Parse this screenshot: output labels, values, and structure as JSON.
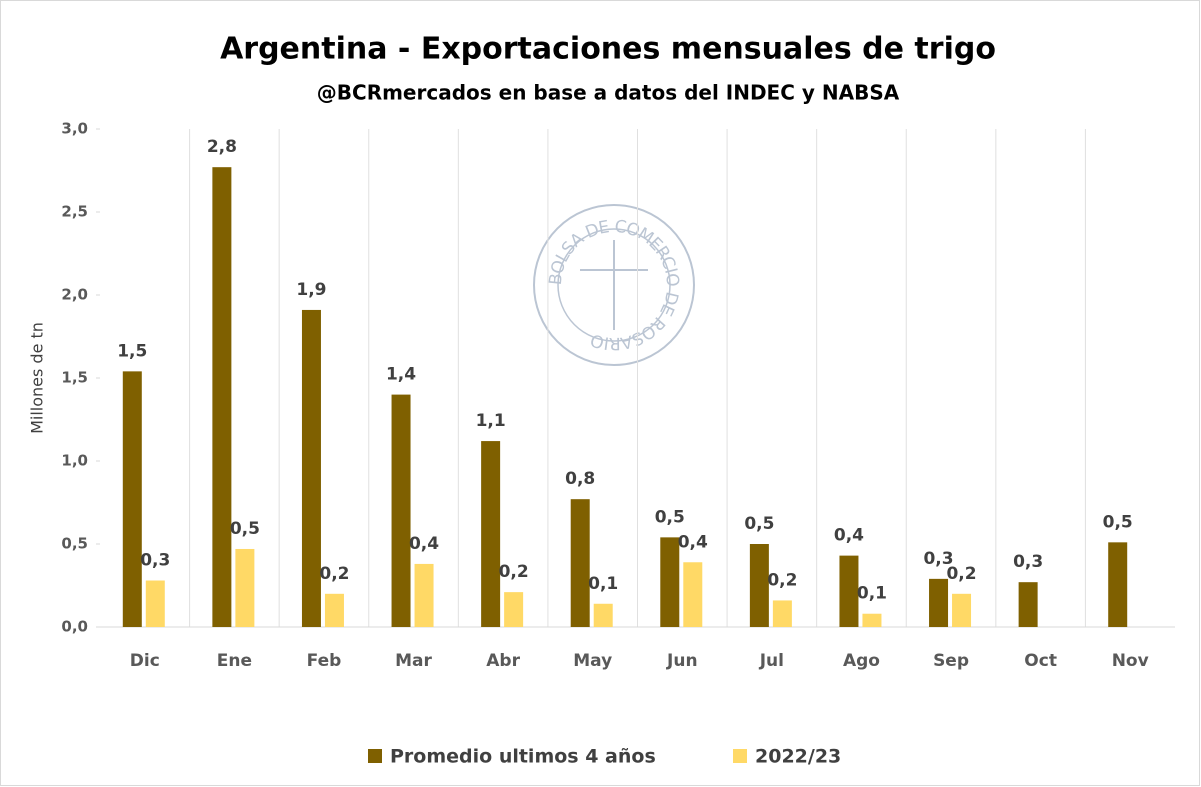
{
  "chart_data": {
    "type": "bar",
    "title": "Argentina - Exportaciones mensuales de trigo",
    "subtitle": "@BCRmercados en base a datos del INDEC y NABSA",
    "watermark": "BOLSA DE COMERCIO DE ROSARIO",
    "y_label": "Millones de tn",
    "categories": [
      "Dic",
      "Ene",
      "Feb",
      "Mar",
      "Abr",
      "May",
      "Jun",
      "Jul",
      "Ago",
      "Sep",
      "Oct",
      "Nov"
    ],
    "series": [
      {
        "name": "Promedio ultimos 4 años",
        "color": "#7f6000",
        "values": [
          1.54,
          2.77,
          1.91,
          1.4,
          1.12,
          0.77,
          0.54,
          0.5,
          0.43,
          0.29,
          0.27,
          0.51
        ],
        "value_labels": [
          "1,5",
          "2,8",
          "1,9",
          "1,4",
          "1,1",
          "0,8",
          "0,5",
          "0,5",
          "0,4",
          "0,3",
          "0,3",
          "0,5"
        ]
      },
      {
        "name": "2022/23",
        "color": "#ffd966",
        "values": [
          0.28,
          0.47,
          0.2,
          0.38,
          0.21,
          0.14,
          0.39,
          0.16,
          0.08,
          0.2,
          null,
          null
        ],
        "value_labels": [
          "0,3",
          "0,5",
          "0,2",
          "0,4",
          "0,2",
          "0,1",
          "0,4",
          "0,2",
          "0,1",
          "0,2",
          null,
          null
        ]
      }
    ],
    "ylim": [
      0,
      3
    ],
    "yticks": [
      {
        "value": 0,
        "label": "0,0"
      },
      {
        "value": 0.5,
        "label": "0,5"
      },
      {
        "value": 1,
        "label": "1,0"
      },
      {
        "value": 1.5,
        "label": "1,5"
      },
      {
        "value": 2,
        "label": "2,0"
      },
      {
        "value": 2.5,
        "label": "2,5"
      },
      {
        "value": 3,
        "label": "3,0"
      }
    ],
    "legend": "bottom"
  }
}
